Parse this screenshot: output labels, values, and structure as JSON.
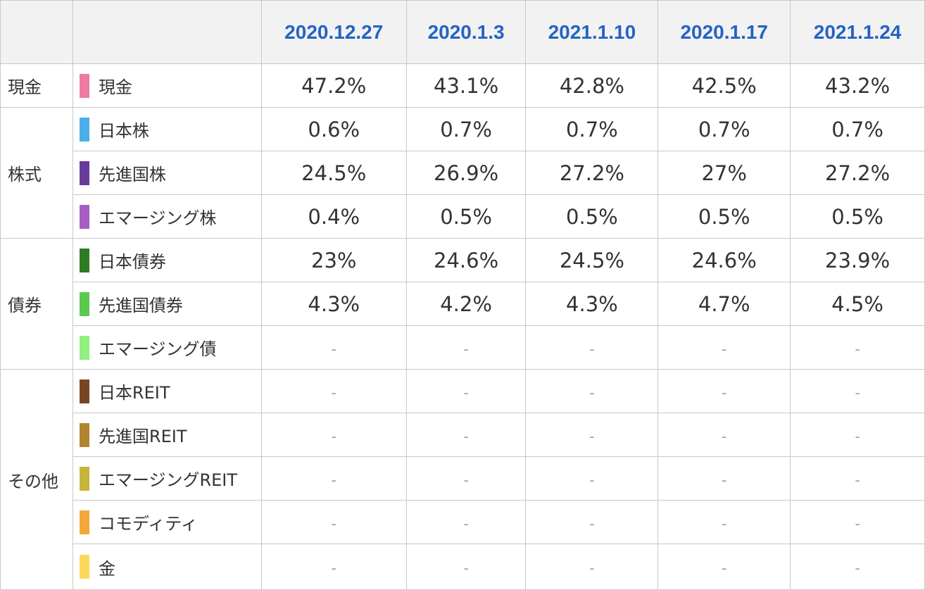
{
  "chart_data": {
    "type": "table",
    "columns": [
      "2020.12.27",
      "2020.1.3",
      "2021.1.10",
      "2020.1.17",
      "2021.1.24"
    ],
    "groups": [
      {
        "name": "現金",
        "rows": [
          {
            "label": "現金",
            "color": "#ef7aa0",
            "values": [
              "47.2%",
              "43.1%",
              "42.8%",
              "42.5%",
              "43.2%"
            ]
          }
        ]
      },
      {
        "name": "株式",
        "rows": [
          {
            "label": "日本株",
            "color": "#4aaee8",
            "values": [
              "0.6%",
              "0.7%",
              "0.7%",
              "0.7%",
              "0.7%"
            ]
          },
          {
            "label": "先進国株",
            "color": "#673a9c",
            "values": [
              "24.5%",
              "26.9%",
              "27.2%",
              "27%",
              "27.2%"
            ]
          },
          {
            "label": "エマージング株",
            "color": "#a95dc1",
            "values": [
              "0.4%",
              "0.5%",
              "0.5%",
              "0.5%",
              "0.5%"
            ]
          }
        ]
      },
      {
        "name": "債券",
        "rows": [
          {
            "label": "日本債券",
            "color": "#2f7a24",
            "values": [
              "23%",
              "24.6%",
              "24.5%",
              "24.6%",
              "23.9%"
            ]
          },
          {
            "label": "先進国債券",
            "color": "#5ac94d",
            "values": [
              "4.3%",
              "4.2%",
              "4.3%",
              "4.7%",
              "4.5%"
            ]
          },
          {
            "label": "エマージング債",
            "color": "#8fef7f",
            "values": [
              "-",
              "-",
              "-",
              "-",
              "-"
            ]
          }
        ]
      },
      {
        "name": "その他",
        "rows": [
          {
            "label": "日本REIT",
            "color": "#7a4522",
            "values": [
              "-",
              "-",
              "-",
              "-",
              "-"
            ]
          },
          {
            "label": "先進国REIT",
            "color": "#b1842e",
            "values": [
              "-",
              "-",
              "-",
              "-",
              "-"
            ]
          },
          {
            "label": "エマージングREIT",
            "color": "#c5b53b",
            "values": [
              "-",
              "-",
              "-",
              "-",
              "-"
            ]
          },
          {
            "label": "コモディティ",
            "color": "#f2a83b",
            "values": [
              "-",
              "-",
              "-",
              "-",
              "-"
            ]
          },
          {
            "label": "金",
            "color": "#fbd957",
            "values": [
              "-",
              "-",
              "-",
              "-",
              "-"
            ]
          }
        ]
      }
    ]
  }
}
